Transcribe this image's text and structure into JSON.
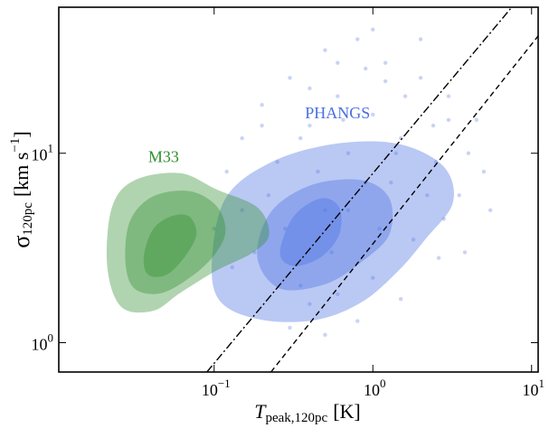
{
  "chart_data": {
    "type": "density",
    "xscale": "log",
    "yscale": "log",
    "xlim": [
      0.0105,
      11
    ],
    "ylim": [
      0.7,
      59
    ],
    "xticks": [
      {
        "value": 0.1,
        "label": "10",
        "exponent": "−1"
      },
      {
        "value": 1,
        "label": "10",
        "exponent": "0"
      },
      {
        "value": 10,
        "label": "10",
        "exponent": "1"
      }
    ],
    "yticks": [
      {
        "value": 1,
        "label": "10",
        "exponent": "0"
      },
      {
        "value": 10,
        "label": "10",
        "exponent": "1"
      }
    ],
    "xlabel": {
      "symbol": "T",
      "subscript": "peak,120pc",
      "unit": "[K]"
    },
    "ylabel": {
      "symbol": "σ",
      "subscript": "120pc",
      "unit": "[km s",
      "unit_exponent": "−1",
      "unit_end": "]"
    },
    "scatter": {
      "color": "#a7b6ee",
      "x": [
        0.15,
        0.2,
        0.3,
        0.5,
        0.8,
        1.2,
        2,
        3,
        4,
        5,
        0.12,
        0.25,
        0.4,
        0.6,
        1,
        1.5,
        2.5,
        3.5,
        0.18,
        0.35,
        0.6,
        1,
        1.8,
        2.8,
        0.3,
        0.5,
        0.8,
        0.22,
        0.45,
        0.7,
        1.3,
        2.2,
        0.9,
        0.4,
        1.6,
        3,
        2,
        1,
        0.6,
        0.15,
        4.5,
        5.5,
        0.1,
        0.13,
        0.7,
        1.1,
        0.28,
        0.55,
        2.4,
        1.4,
        0.35,
        0.9,
        3.8,
        0.2,
        0.65,
        1.2,
        0.5,
        2.6,
        0.4,
        1.5
      ],
      "y": [
        12,
        18,
        25,
        35,
        40,
        30,
        25,
        15,
        10,
        8,
        8,
        9,
        14,
        20,
        16,
        12,
        9,
        6,
        3,
        2,
        1.8,
        2.2,
        3.5,
        4.5,
        1.2,
        1.1,
        1.3,
        6,
        8,
        10,
        7,
        6,
        28,
        22,
        20,
        20,
        40,
        45,
        30,
        5,
        15,
        5,
        4,
        2.5,
        5,
        4,
        4,
        3,
        14,
        10,
        12,
        7,
        3,
        14,
        15,
        24,
        5,
        2.8,
        1.6,
        1.7
      ]
    },
    "contour_sets": [
      {
        "name": "PHANGS",
        "color": "#4a6fe3",
        "label_color": "#4a6fe3",
        "levels": [
          {
            "x": [
              0.0968,
              0.118,
              0.228,
              0.574,
              1.45,
              2.8,
              3.19,
              2.15,
              1.45,
              0.854,
              0.441,
              0.2,
              0.11
            ],
            "y": [
              2.68,
              5.78,
              8.96,
              11.2,
              11.2,
              8.49,
              5.47,
              3.53,
              2.4,
              1.64,
              1.32,
              1.32,
              1.64
            ]
          },
          {
            "x": [
              0.187,
              0.228,
              0.413,
              0.854,
              1.27,
              1.27,
              0.854,
              0.504,
              0.26
            ],
            "y": [
              2.83,
              4.9,
              6.81,
              7.2,
              5.78,
              3.73,
              2.68,
              2.04,
              1.93
            ]
          },
          {
            "x": [
              0.26,
              0.317,
              0.471,
              0.614,
              0.614,
              0.471,
              0.317
            ],
            "y": [
              2.99,
              4.64,
              5.78,
              5.18,
              3.73,
              2.83,
              2.54
            ]
          }
        ]
      },
      {
        "name": "M33",
        "color": "#2f8f2f",
        "label_color": "#2f8f2f",
        "levels": [
          {
            "x": [
              0.0212,
              0.0227,
              0.0315,
              0.061,
              0.103,
              0.187,
              0.222,
              0.175,
              0.103,
              0.061,
              0.041,
              0.0259
            ],
            "y": [
              2.54,
              5.18,
              7.2,
              7.85,
              6.45,
              5.18,
              3.73,
              2.99,
              2.4,
              1.83,
              1.47,
              1.55
            ]
          },
          {
            "x": [
              0.0276,
              0.0295,
              0.041,
              0.0696,
              0.103,
              0.118,
              0.103,
              0.0743,
              0.0468,
              0.0315
            ],
            "y": [
              2.68,
              4.39,
              5.91,
              6.31,
              5.29,
              3.94,
              2.99,
              2.28,
              1.83,
              1.93
            ]
          },
          {
            "x": [
              0.036,
              0.041,
              0.0534,
              0.0696,
              0.0773,
              0.0651,
              0.05,
              0.0385
            ],
            "y": [
              2.83,
              3.94,
              4.64,
              4.64,
              3.73,
              2.83,
              2.28,
              2.28
            ]
          }
        ]
      }
    ],
    "labels": [
      {
        "text": "PHANGS",
        "x": 0.6,
        "y": 16
      },
      {
        "text": "M33",
        "x": 0.048,
        "y": 9.4
      }
    ],
    "lines": [
      {
        "style": "dashdot",
        "x": [
          0.09,
          7.5
        ],
        "y": [
          0.7,
          59
        ]
      },
      {
        "style": "dashed",
        "x": [
          0.228,
          11
        ],
        "y": [
          0.7,
          41.6
        ]
      }
    ]
  }
}
